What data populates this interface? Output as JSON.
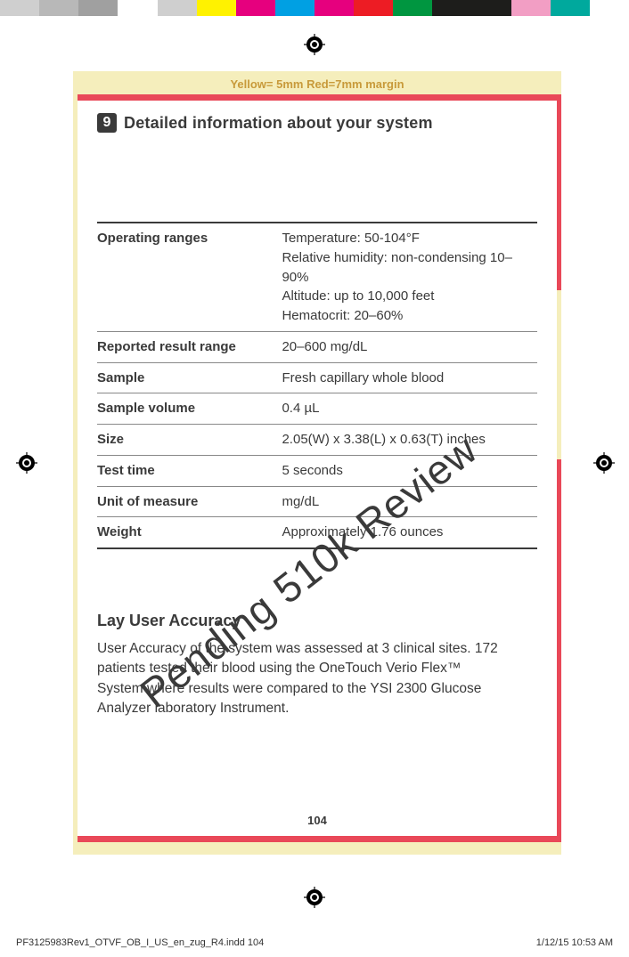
{
  "color_bar": [
    "#cfcfcf",
    "#b8b8b8",
    "#a0a0a0",
    "#ffffff",
    "#cfcfcf",
    "#fff200",
    "#e6007e",
    "#00a0e3",
    "#e6007e",
    "#ed1c24",
    "#009640",
    "#1d1d1b",
    "#1d1d1b",
    "#f29ec4",
    "#00a99d",
    "#ffffff"
  ],
  "margin_label": "Yellow= 5mm  Red=7mm margin",
  "section": {
    "num": "9",
    "title": "Detailed information about your system"
  },
  "spec_rows": [
    {
      "label": "Operating ranges",
      "value": "Temperature: 50-104°F\nRelative humidity: non-condensing 10–90%\nAltitude: up to 10,000 feet\nHematocrit: 20–60%"
    },
    {
      "label": "Reported result range",
      "value": "20–600 mg/dL"
    },
    {
      "label": "Sample",
      "value": "Fresh capillary whole blood"
    },
    {
      "label": "Sample volume",
      "value": "0.4 µL"
    },
    {
      "label": "Size",
      "value": "2.05(W) x 3.38(L) x 0.63(T) inches"
    },
    {
      "label": "Test time",
      "value": "5 seconds"
    },
    {
      "label": "Unit of measure",
      "value": "mg/dL"
    },
    {
      "label": "Weight",
      "value": "Approximately 1.76 ounces"
    }
  ],
  "lay": {
    "heading": "Lay User Accuracy",
    "body": "User Accuracy of the system was assessed at 3 clinical sites. 172 patients tested their blood using the OneTouch Verio Flex™ System where results were compared to the YSI 2300 Glucose Analyzer laboratory Instrument."
  },
  "page_number": "104",
  "watermark": "Pending 510k Review",
  "footer": {
    "left": "PF3125983Rev1_OTVF_OB_I_US_en_zug_R4.indd   104",
    "right": "1/12/15   10:53 AM"
  }
}
